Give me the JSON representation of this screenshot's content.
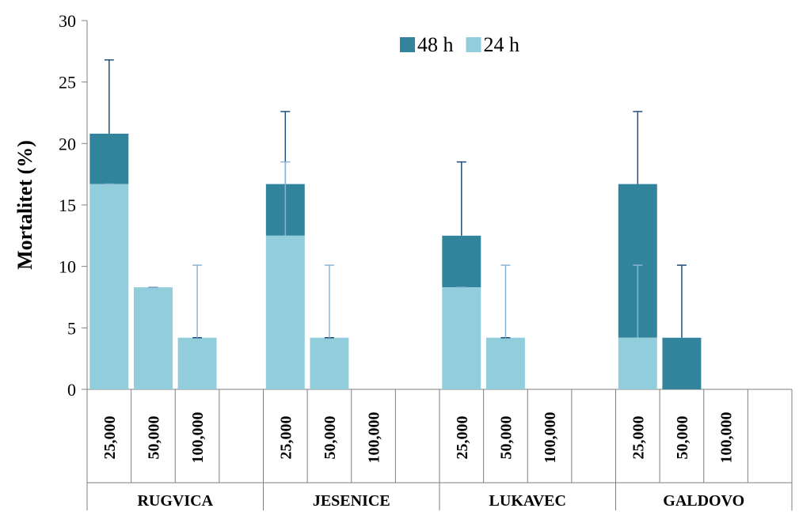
{
  "chart_data": {
    "type": "bar",
    "stacked": true,
    "ylabel": "Mortalitet (%)",
    "ylim": [
      0,
      30
    ],
    "yticks": [
      0,
      5,
      10,
      15,
      20,
      25,
      30
    ],
    "grid": false,
    "legend": {
      "placement": "top-center",
      "entries": [
        {
          "label": "48 h",
          "color": "#31849b"
        },
        {
          "label": "24 h",
          "color": "#92cddc"
        }
      ]
    },
    "groups": [
      {
        "name": "RUGVICA",
        "categories": [
          "25,000",
          "50,000",
          "100,000"
        ],
        "h24": [
          16.7,
          8.3,
          4.2
        ],
        "h48": [
          20.8,
          8.3,
          4.2
        ],
        "err24": [
          16.7,
          8.3,
          10.1
        ],
        "err48": [
          26.8,
          8.3,
          4.2
        ]
      },
      {
        "name": "JESENICE",
        "categories": [
          "25,000",
          "50,000",
          "100,000"
        ],
        "h24": [
          12.5,
          4.2,
          0
        ],
        "h48": [
          16.7,
          4.2,
          0
        ],
        "err24": [
          18.5,
          10.1,
          0
        ],
        "err48": [
          22.6,
          4.2,
          0
        ]
      },
      {
        "name": "LUKAVEC",
        "categories": [
          "25,000",
          "50,000",
          "100,000"
        ],
        "h24": [
          8.3,
          4.2,
          0
        ],
        "h48": [
          12.5,
          4.2,
          0
        ],
        "err24": [
          8.3,
          10.1,
          0
        ],
        "err48": [
          18.5,
          4.2,
          0
        ]
      },
      {
        "name": "GALDOVO",
        "categories": [
          "25,000",
          "50,000",
          "100,000"
        ],
        "h24": [
          4.2,
          0,
          0
        ],
        "h48": [
          16.7,
          4.2,
          0
        ],
        "err24": [
          10.1,
          0,
          0
        ],
        "err48": [
          22.6,
          10.1,
          0
        ]
      }
    ]
  },
  "colors": {
    "h48": "#31849b",
    "h24": "#92cddc",
    "err48": "#1f4e79",
    "err24": "#8ab4d6",
    "axis": "#7f7f7f"
  }
}
